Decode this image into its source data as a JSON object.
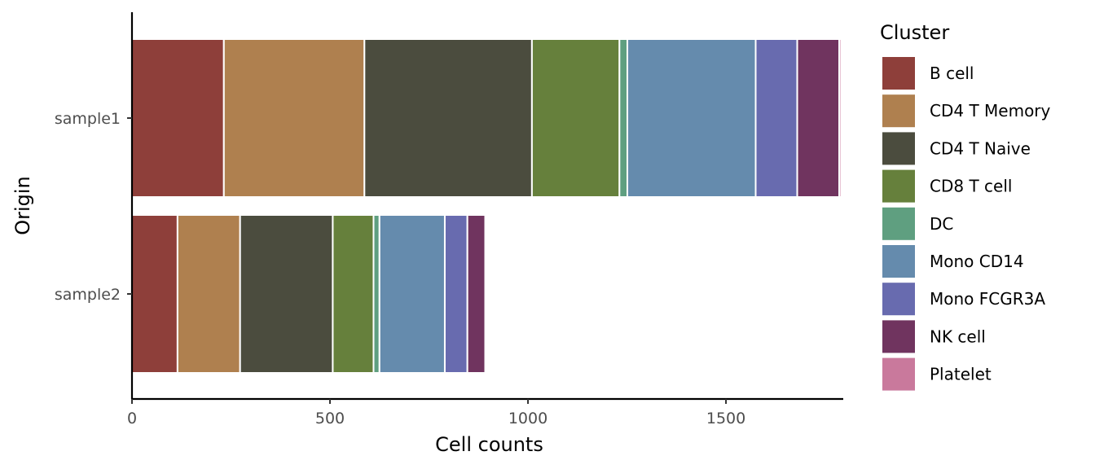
{
  "chart_data": {
    "type": "bar",
    "orientation": "horizontal",
    "stacked": true,
    "xlabel": "Cell counts",
    "ylabel": "Origin",
    "xlim": [
      0,
      1800
    ],
    "xticks": [
      0,
      500,
      1000,
      1500
    ],
    "categories": [
      "sample1",
      "sample2"
    ],
    "legend_title": "Cluster",
    "legend_position": "right",
    "grid": false,
    "series": [
      {
        "name": "B cell",
        "color": "#8E3F3A",
        "values": [
          232,
          115
        ]
      },
      {
        "name": "CD4 T Memory",
        "color": "#AF804F",
        "values": [
          355,
          158
        ]
      },
      {
        "name": "CD4 T Naive",
        "color": "#4B4C3E",
        "values": [
          423,
          234
        ]
      },
      {
        "name": "CD8 T cell",
        "color": "#66803C",
        "values": [
          221,
          103
        ]
      },
      {
        "name": "DC",
        "color": "#5F9F80",
        "values": [
          20,
          15
        ]
      },
      {
        "name": "Mono CD14",
        "color": "#658BAD",
        "values": [
          324,
          165
        ]
      },
      {
        "name": "Mono FCGR3A",
        "color": "#686BAF",
        "values": [
          105,
          57
        ]
      },
      {
        "name": "NK cell",
        "color": "#70345F",
        "values": [
          106,
          45
        ]
      },
      {
        "name": "Platelet",
        "color": "#C9799C",
        "values": [
          5,
          4
        ]
      }
    ]
  }
}
